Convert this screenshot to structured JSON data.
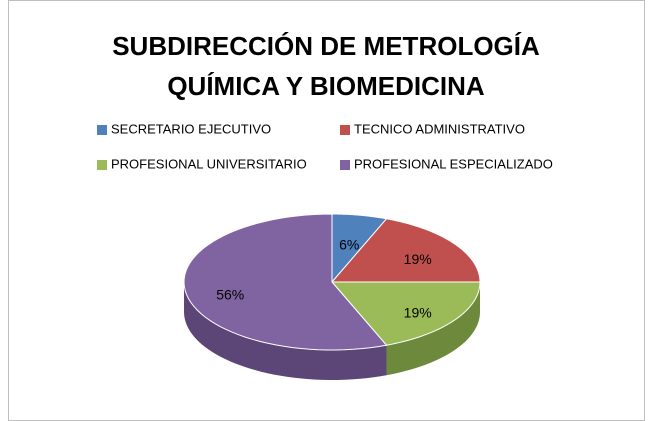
{
  "chart_data": {
    "type": "pie3d",
    "title": "SUBDIRECCIÓN DE METROLOGÍA QUÍMICA Y BIOMEDICINA",
    "categories": [
      "SECRETARIO EJECUTIVO",
      "TECNICO ADMINISTRATIVO",
      "PROFESIONAL UNIVERSITARIO",
      "PROFESIONAL ESPECIALIZADO"
    ],
    "values": [
      6,
      19,
      19,
      56
    ],
    "value_labels": [
      "6%",
      "19%",
      "19%",
      "56%"
    ],
    "colors": [
      "#4f81bd",
      "#c0504d",
      "#9bbb59",
      "#8064a2"
    ],
    "side_colors": [
      "#3a6190",
      "#8f3a38",
      "#6d8a3c",
      "#5c4677"
    ],
    "legend": "top"
  }
}
